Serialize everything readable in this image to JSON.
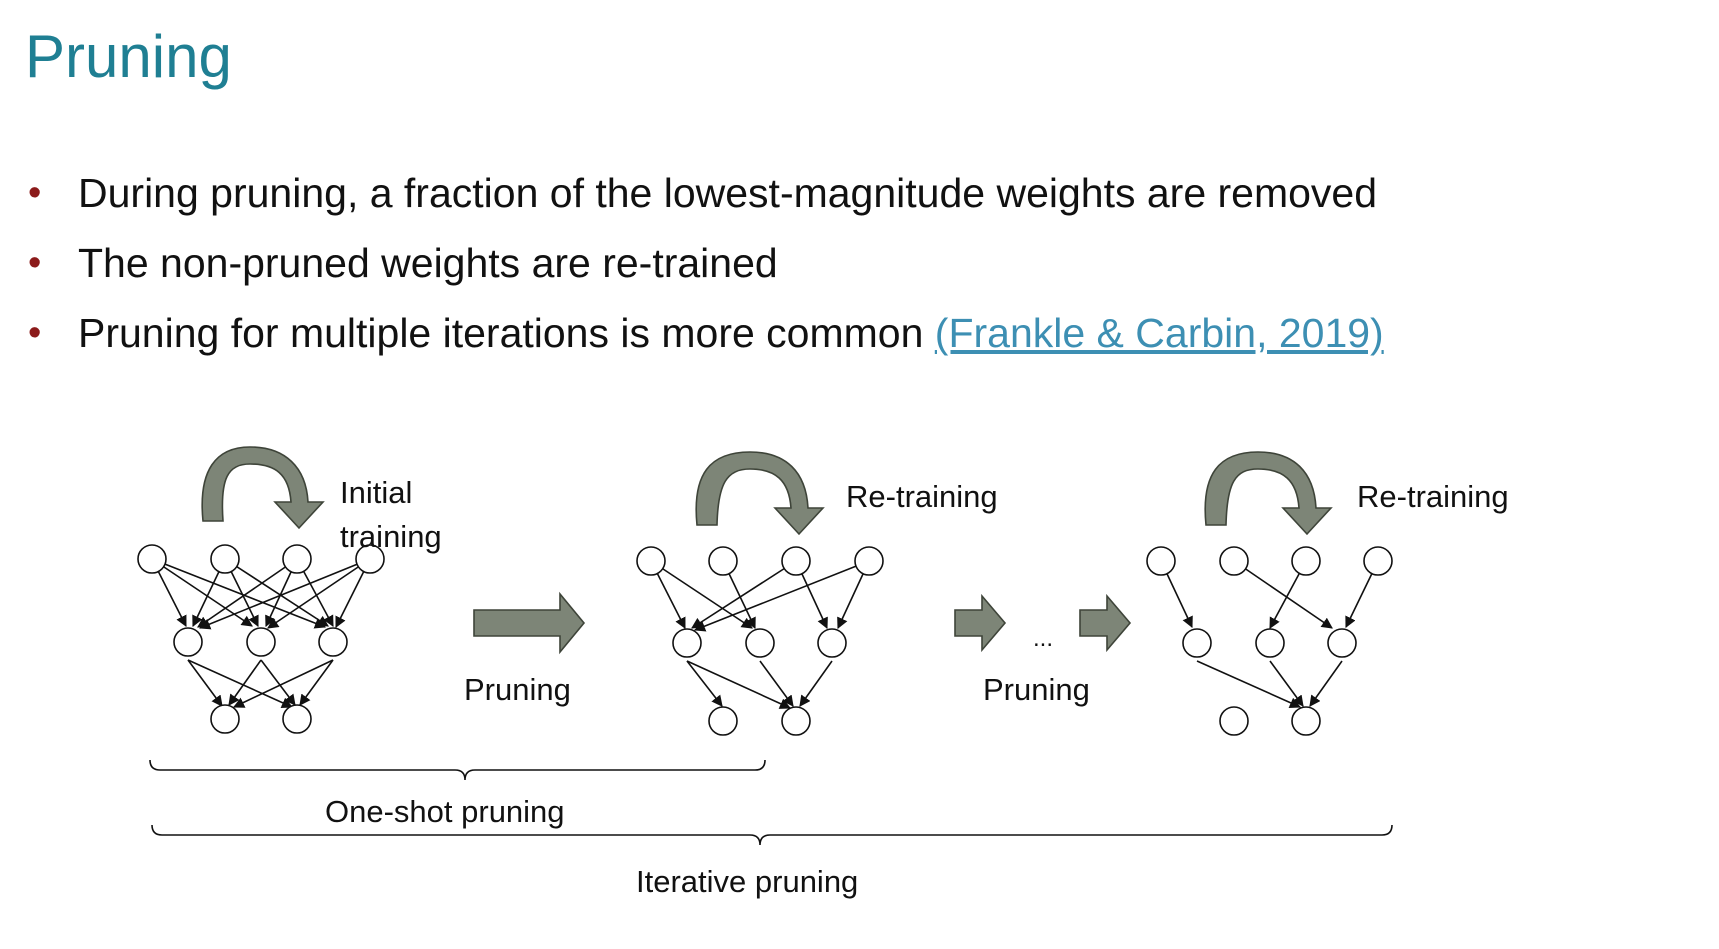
{
  "slide": {
    "title": "Pruning",
    "bullets": [
      "During pruning, a fraction of the lowest-magnitude weights are removed",
      "The non-pruned weights are re-trained",
      "Pruning for multiple iterations is more common"
    ],
    "citation": "(Frankle & Carbin, 2019)",
    "bullet_color": "#8b1a1a",
    "title_color": "#1f7f93",
    "link_color": "#3d8fb3"
  },
  "diagram": {
    "loop_labels": {
      "initial_line1": "Initial",
      "initial_line2": "training",
      "retrain_1": "Re-training",
      "retrain_2": "Re-training"
    },
    "pruning_label_1": "Pruning",
    "pruning_label_2": "Pruning",
    "ellipsis": "...",
    "brace_one_shot": "One-shot pruning",
    "brace_iterative": "Iterative pruning",
    "arrow_color": "#7d8577"
  }
}
